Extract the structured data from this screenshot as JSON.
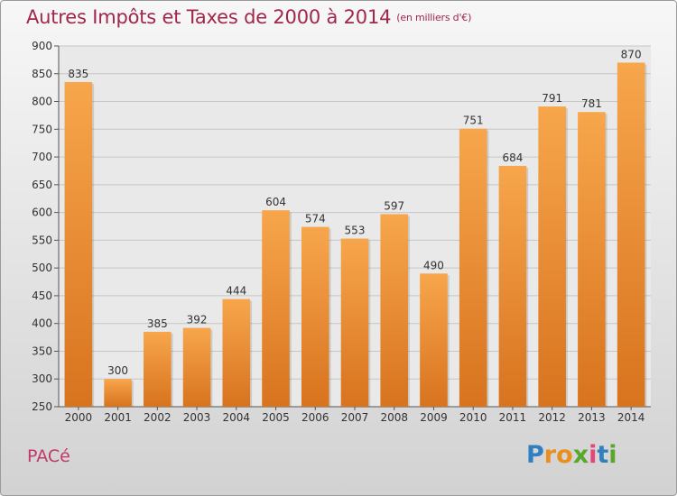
{
  "title": "Autres Impôts et Taxes de 2000 à 2014",
  "subtitle": "(en milliers d'€)",
  "commune": "PACé",
  "logo": {
    "text": "Proxiti",
    "letters": [
      {
        "ch": "P",
        "color": "#2f7fc1"
      },
      {
        "ch": "r",
        "color": "#e98f1e"
      },
      {
        "ch": "o",
        "color": "#e98f1e"
      },
      {
        "ch": "x",
        "color": "#59a82a"
      },
      {
        "ch": "i",
        "color": "#e2467a"
      },
      {
        "ch": "t",
        "color": "#2f7fc1"
      },
      {
        "ch": "i",
        "color": "#59a82a"
      }
    ]
  },
  "colors": {
    "title": "#a0274a",
    "bar_light": "#f7a64c",
    "bar_dark": "#d8731e"
  },
  "chart_data": {
    "type": "bar",
    "title": "Autres Impôts et Taxes de 2000 à 2014",
    "subtitle": "(en milliers d'€)",
    "xlabel": "",
    "ylabel": "",
    "categories": [
      "2000",
      "2001",
      "2002",
      "2003",
      "2004",
      "2005",
      "2006",
      "2007",
      "2008",
      "2009",
      "2010",
      "2011",
      "2012",
      "2013",
      "2014"
    ],
    "values": [
      835,
      300,
      385,
      392,
      444,
      604,
      574,
      553,
      597,
      490,
      751,
      684,
      791,
      781,
      870
    ],
    "ylim": [
      250,
      900
    ],
    "yticks": [
      250,
      300,
      350,
      400,
      450,
      500,
      550,
      600,
      650,
      700,
      750,
      800,
      850,
      900
    ],
    "grid": true,
    "data_labels": true
  }
}
